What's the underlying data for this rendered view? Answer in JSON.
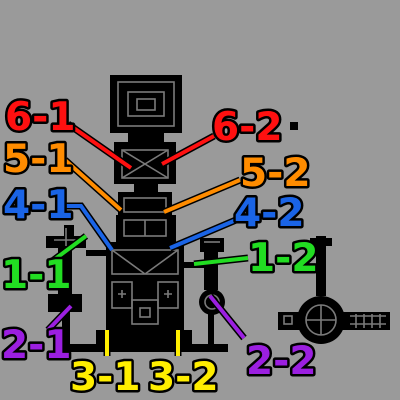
{
  "map": {
    "background": "#9a9a9a",
    "markers": [
      {
        "id": "6-1",
        "label": "6-1",
        "color": "#ff1010"
      },
      {
        "id": "6-2",
        "label": "6-2",
        "color": "#ff1010"
      },
      {
        "id": "5-1",
        "label": "5-1",
        "color": "#ff8c00"
      },
      {
        "id": "5-2",
        "label": "5-2",
        "color": "#ff8c00"
      },
      {
        "id": "4-1",
        "label": "4-1",
        "color": "#1a64e6"
      },
      {
        "id": "4-2",
        "label": "4-2",
        "color": "#1a64e6"
      },
      {
        "id": "1-1",
        "label": "1-1",
        "color": "#22dd22"
      },
      {
        "id": "1-2",
        "label": "1-2",
        "color": "#22dd22"
      },
      {
        "id": "2-1",
        "label": "2-1",
        "color": "#9b1fe0"
      },
      {
        "id": "2-2",
        "label": "2-2",
        "color": "#9b1fe0"
      },
      {
        "id": "3-1",
        "label": "3-1",
        "color": "#ffee00"
      },
      {
        "id": "3-2",
        "label": "3-2",
        "color": "#ffee00"
      }
    ]
  }
}
